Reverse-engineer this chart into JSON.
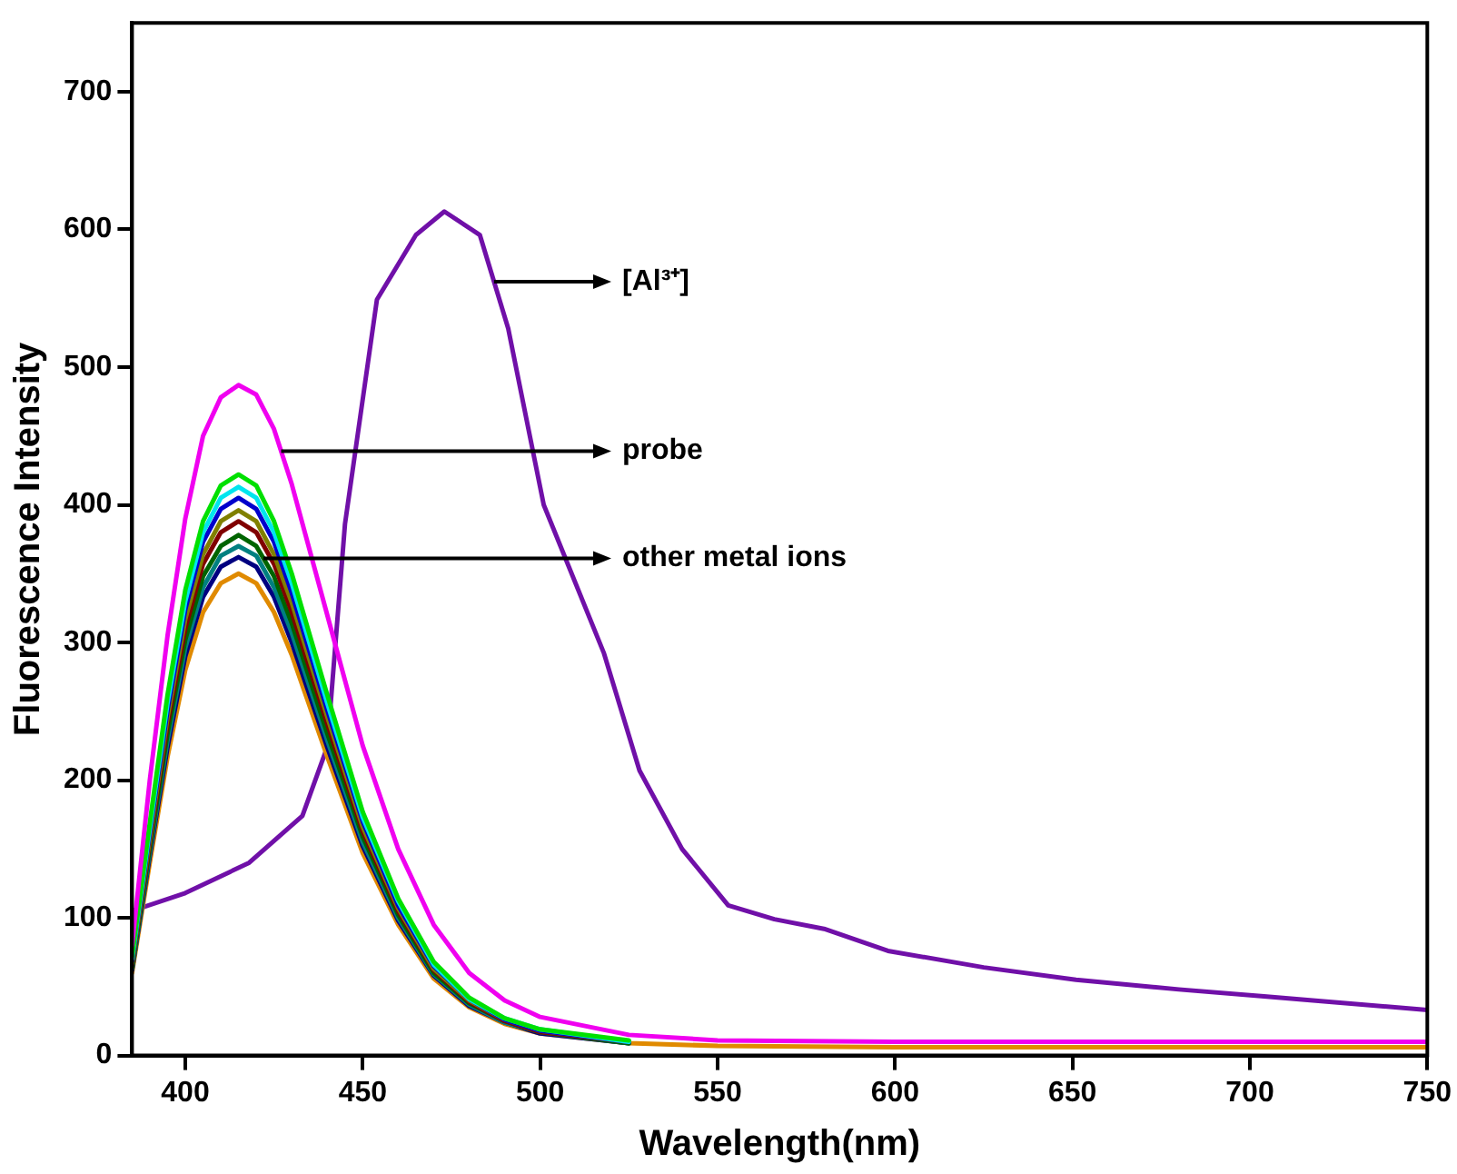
{
  "chart_data": {
    "type": "line",
    "xlabel": "Wavelength(nm)",
    "ylabel": "Fluorescence Intensity",
    "xlim": [
      385,
      750
    ],
    "xticks": [
      400,
      450,
      500,
      550,
      600,
      650,
      700,
      750
    ],
    "ylim": [
      0,
      750
    ],
    "yticks": [
      0,
      100,
      200,
      300,
      400,
      500,
      600,
      700
    ],
    "grid": false,
    "legend": false,
    "marker": "none",
    "line_style": "solid",
    "x": [
      385,
      390,
      395,
      400,
      405,
      410,
      415,
      420,
      425,
      430,
      440,
      450,
      460,
      470,
      480,
      490,
      500,
      525,
      550,
      600,
      650,
      700,
      750
    ],
    "series": [
      {
        "color": "#f000f0",
        "values": [
          80,
          200,
          305,
          390,
          450,
          478,
          487,
          480,
          455,
          415,
          320,
          225,
          150,
          95,
          60,
          40,
          28,
          15,
          11,
          10,
          10,
          10,
          10
        ]
      },
      {
        "color": "#00e000",
        "values": [
          72,
          169,
          262,
          338,
          388,
          414,
          422,
          414,
          388,
          350,
          262,
          177,
          114,
          68,
          42,
          27,
          19,
          11,
          null,
          null,
          null,
          null,
          null
        ]
      },
      {
        "color": "#00e5ee",
        "values": [
          70,
          165,
          256,
          330,
          380,
          405,
          413,
          405,
          380,
          343,
          256,
          173,
          112,
          66,
          41,
          27,
          19,
          10,
          null,
          null,
          null,
          null,
          null
        ]
      },
      {
        "color": "#0000cc",
        "values": [
          69,
          162,
          251,
          324,
          373,
          397,
          405,
          397,
          373,
          336,
          251,
          170,
          109,
          65,
          41,
          26,
          18,
          10,
          null,
          null,
          null,
          null,
          null
        ]
      },
      {
        "color": "#808000",
        "values": [
          67,
          158,
          246,
          317,
          364,
          388,
          396,
          388,
          364,
          329,
          246,
          166,
          107,
          63,
          40,
          26,
          18,
          10,
          null,
          null,
          null,
          null,
          null
        ]
      },
      {
        "color": "#800000",
        "values": [
          66,
          155,
          241,
          310,
          357,
          380,
          388,
          380,
          357,
          322,
          241,
          163,
          105,
          62,
          39,
          25,
          17,
          10,
          null,
          null,
          null,
          null,
          null
        ]
      },
      {
        "color": "#006400",
        "values": [
          64,
          151,
          234,
          302,
          348,
          370,
          378,
          370,
          348,
          314,
          234,
          159,
          102,
          60,
          38,
          25,
          17,
          9,
          null,
          null,
          null,
          null,
          null
        ]
      },
      {
        "color": "#008080",
        "values": [
          63,
          148,
          229,
          296,
          340,
          363,
          370,
          363,
          340,
          307,
          229,
          155,
          100,
          59,
          37,
          24,
          17,
          9,
          null,
          null,
          null,
          null,
          null
        ]
      },
      {
        "color": "#000080",
        "values": [
          62,
          145,
          224,
          290,
          333,
          355,
          362,
          355,
          333,
          300,
          224,
          152,
          98,
          58,
          36,
          24,
          16,
          9,
          null,
          null,
          null,
          null,
          null
        ]
      },
      {
        "color": "#e08a00",
        "values": [
          60,
          140,
          217,
          280,
          322,
          343,
          350,
          343,
          322,
          291,
          217,
          147,
          95,
          56,
          35,
          23,
          16,
          9,
          7,
          6,
          6,
          6,
          6
        ]
      },
      {
        "color": "#7010a8",
        "x": [
          385,
          400,
          418,
          433,
          440,
          445,
          454,
          465,
          473,
          483,
          491,
          501,
          518,
          528,
          540,
          553,
          566,
          580,
          598,
          625,
          651,
          680,
          704,
          750
        ],
        "values": [
          105,
          118,
          140,
          174,
          224,
          386,
          549,
          596,
          613,
          596,
          528,
          400,
          292,
          207,
          150,
          109,
          99,
          92,
          76,
          64,
          55,
          48,
          43,
          33
        ]
      }
    ],
    "annotations": [
      {
        "text": "[Al³⁺]",
        "x": 487,
        "y": 562
      },
      {
        "text": "probe",
        "x": 427,
        "y": 439
      },
      {
        "text": "other metal ions",
        "x": 422,
        "y": 361
      }
    ]
  }
}
